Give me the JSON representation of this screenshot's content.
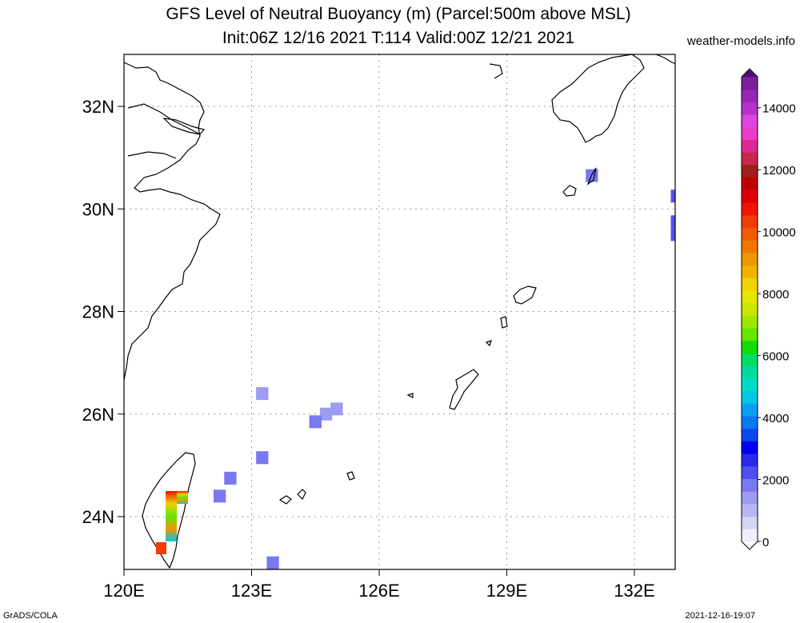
{
  "title": {
    "line1": "GFS Level of Neutral Buoyancy (m) (Parcel:500m above MSL)",
    "line2": "Init:06Z 12/16 2021 T:114 Valid:00Z 12/21 2021",
    "site": "weather-models.info"
  },
  "footer": {
    "left": "GrADS/COLA",
    "right": "2021-12-16-19:07"
  },
  "map": {
    "lon_range": [
      120,
      133
    ],
    "lat_range": [
      23,
      33
    ],
    "lon_ticks": [
      {
        "value": 120,
        "label": "120E"
      },
      {
        "value": 123,
        "label": "123E"
      },
      {
        "value": 126,
        "label": "126E"
      },
      {
        "value": 129,
        "label": "129E"
      },
      {
        "value": 132,
        "label": "132E"
      }
    ],
    "lat_ticks": [
      {
        "value": 24,
        "label": "24N"
      },
      {
        "value": 26,
        "label": "26N"
      },
      {
        "value": 28,
        "label": "28N"
      },
      {
        "value": 30,
        "label": "30N"
      },
      {
        "value": 32,
        "label": "32N"
      }
    ],
    "grid": "dotted"
  },
  "colorbar": {
    "min": 0,
    "max": 15000,
    "labels": [
      "0",
      "2000",
      "4000",
      "6000",
      "8000",
      "10000",
      "12000",
      "14000"
    ],
    "label_values": [
      0,
      2000,
      4000,
      6000,
      8000,
      10000,
      12000,
      14000
    ],
    "colors": [
      "#eeeeff",
      "#d4d4f5",
      "#b8b8f0",
      "#9c9cf0",
      "#7878f0",
      "#5050f0",
      "#2828f0",
      "#0000f0",
      "#0a46ee",
      "#0a78f0",
      "#0aa0f0",
      "#00c8e6",
      "#00dcc8",
      "#00dca0",
      "#00dc64",
      "#14dc00",
      "#64e600",
      "#a0e600",
      "#c8e600",
      "#e6e600",
      "#f0d200",
      "#f0b400",
      "#f09600",
      "#f07800",
      "#f05a00",
      "#f03c00",
      "#f01400",
      "#dc0000",
      "#c00000",
      "#a01e1e",
      "#c8284a",
      "#dc2896",
      "#e63cc8",
      "#dc46dc",
      "#b432c8",
      "#9628b4",
      "#781e96"
    ]
  },
  "chart_data": {
    "type": "heatmap",
    "variable": "Level of Neutral Buoyancy",
    "units": "m",
    "cells": [
      {
        "lon": 133.0,
        "lat": 30.25,
        "value": 2200
      },
      {
        "lon": 133.0,
        "lat": 29.75,
        "value": 2200
      },
      {
        "lon": 133.0,
        "lat": 29.5,
        "value": 2200
      },
      {
        "lon": 131.0,
        "lat": 30.65,
        "value": 2000
      },
      {
        "lon": 123.25,
        "lat": 26.4,
        "value": 1600
      },
      {
        "lon": 124.75,
        "lat": 26.0,
        "value": 1600
      },
      {
        "lon": 125.0,
        "lat": 26.1,
        "value": 1400
      },
      {
        "lon": 124.5,
        "lat": 25.85,
        "value": 1800
      },
      {
        "lon": 123.25,
        "lat": 25.15,
        "value": 1800
      },
      {
        "lon": 122.5,
        "lat": 24.75,
        "value": 1800
      },
      {
        "lon": 122.25,
        "lat": 24.4,
        "value": 1800
      },
      {
        "lon": 123.5,
        "lat": 23.1,
        "value": 1800
      },
      {
        "lon": 121.0,
        "lat": 24.3,
        "value": 9000
      },
      {
        "lon": 121.0,
        "lat": 23.9,
        "value": 6000
      },
      {
        "lon": 120.75,
        "lat": 23.4,
        "value": 10000
      }
    ]
  }
}
